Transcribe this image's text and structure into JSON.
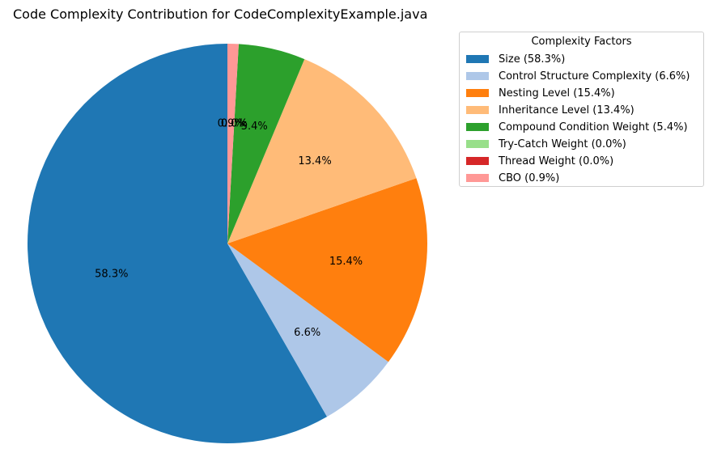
{
  "chart_data": {
    "type": "pie",
    "title": "Code Complexity Contribution for CodeComplexityExample.java",
    "start_angle": 90,
    "direction": "counterclockwise",
    "slices": [
      {
        "label": "Size",
        "value": 58.3,
        "pct_label": "58.3%",
        "legend": "Size (58.3%)",
        "color": "#1f77b4"
      },
      {
        "label": "Control Structure Complexity",
        "value": 6.6,
        "pct_label": "6.6%",
        "legend": "Control Structure Complexity (6.6%)",
        "color": "#aec7e8"
      },
      {
        "label": "Nesting Level",
        "value": 15.4,
        "pct_label": "15.4%",
        "legend": "Nesting Level (15.4%)",
        "color": "#ff7f0e"
      },
      {
        "label": "Inheritance Level",
        "value": 13.4,
        "pct_label": "13.4%",
        "legend": "Inheritance Level (13.4%)",
        "color": "#ffbb78"
      },
      {
        "label": "Compound Condition Weight",
        "value": 5.4,
        "pct_label": "5.4%",
        "legend": "Compound Condition Weight (5.4%)",
        "color": "#2ca02c"
      },
      {
        "label": "Try-Catch Weight",
        "value": 0.0,
        "pct_label": "0.0%",
        "legend": "Try-Catch Weight (0.0%)",
        "color": "#98df8a"
      },
      {
        "label": "Thread Weight",
        "value": 0.0,
        "pct_label": "0.0%",
        "legend": "Thread Weight (0.0%)",
        "color": "#d62728"
      },
      {
        "label": "CBO",
        "value": 0.9,
        "pct_label": "0.9%",
        "legend": "CBO (0.9%)",
        "color": "#ff9896"
      }
    ],
    "legend": {
      "title": "Complexity Factors",
      "placement": "upper-right-outside"
    }
  }
}
